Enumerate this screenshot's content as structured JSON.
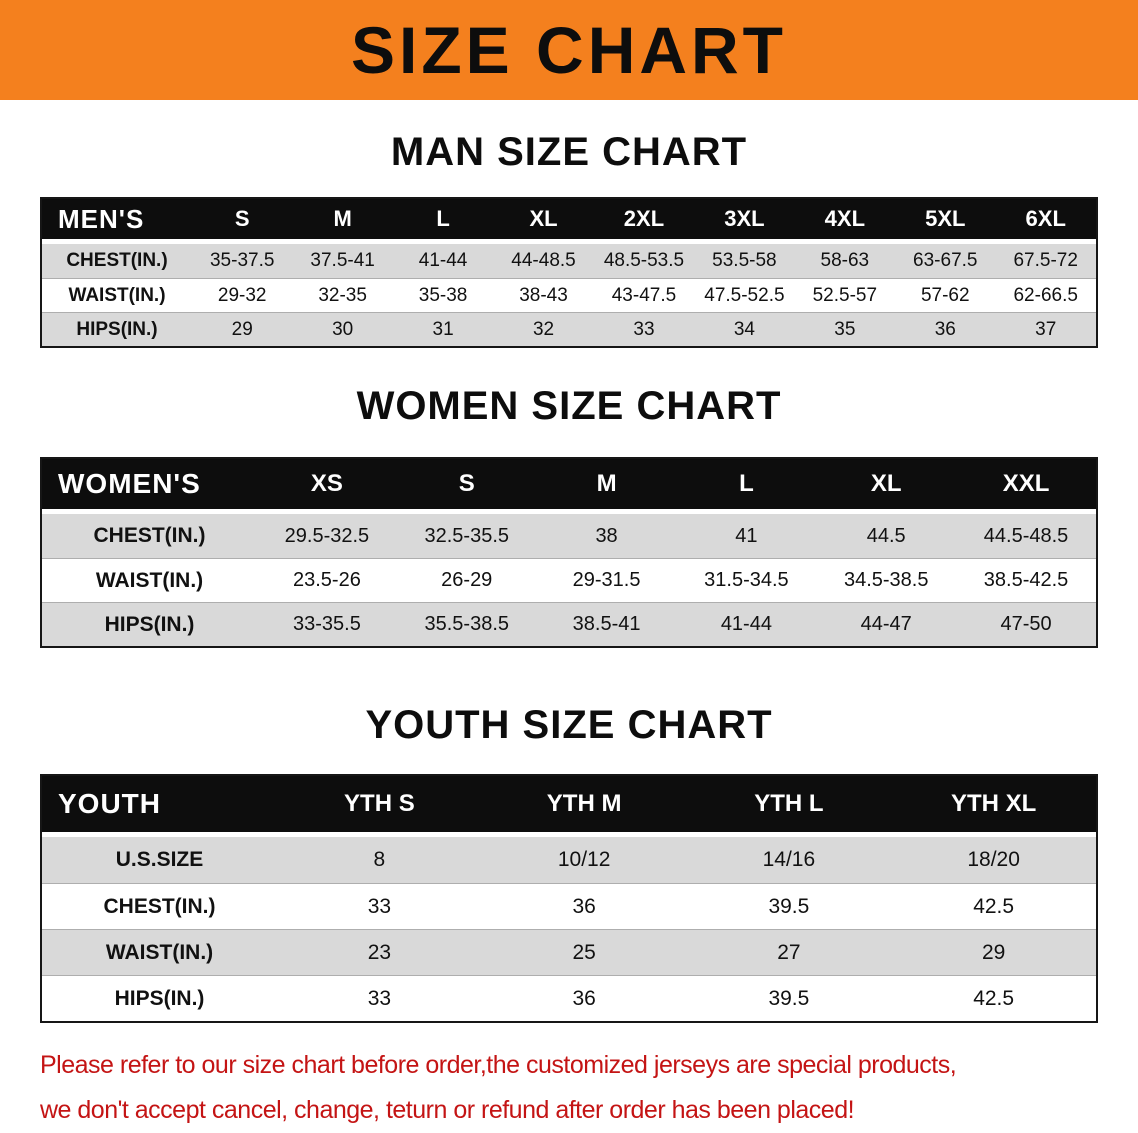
{
  "banner": {
    "title": "SIZE CHART",
    "bg_color": "#f4801e"
  },
  "sections": [
    {
      "heading": "MAN SIZE CHART",
      "table": {
        "corner_label": "MEN'S",
        "columns": [
          "S",
          "M",
          "L",
          "XL",
          "2XL",
          "3XL",
          "4XL",
          "5XL",
          "6XL"
        ],
        "rows": [
          {
            "label": "CHEST(IN.)",
            "values": [
              "35-37.5",
              "37.5-41",
              "41-44",
              "44-48.5",
              "48.5-53.5",
              "53.5-58",
              "58-63",
              "63-67.5",
              "67.5-72"
            ]
          },
          {
            "label": "WAIST(IN.)",
            "values": [
              "29-32",
              "32-35",
              "35-38",
              "38-43",
              "43-47.5",
              "47.5-52.5",
              "52.5-57",
              "57-62",
              "62-66.5"
            ]
          },
          {
            "label": "HIPS(IN.)",
            "values": [
              "29",
              "30",
              "31",
              "32",
              "33",
              "34",
              "35",
              "36",
              "37"
            ]
          }
        ]
      }
    },
    {
      "heading": "WOMEN SIZE CHART",
      "table": {
        "corner_label": "WOMEN'S",
        "columns": [
          "XS",
          "S",
          "M",
          "L",
          "XL",
          "XXL"
        ],
        "rows": [
          {
            "label": "CHEST(IN.)",
            "values": [
              "29.5-32.5",
              "32.5-35.5",
              "38",
              "41",
              "44.5",
              "44.5-48.5"
            ]
          },
          {
            "label": "WAIST(IN.)",
            "values": [
              "23.5-26",
              "26-29",
              "29-31.5",
              "31.5-34.5",
              "34.5-38.5",
              "38.5-42.5"
            ]
          },
          {
            "label": "HIPS(IN.)",
            "values": [
              "33-35.5",
              "35.5-38.5",
              "38.5-41",
              "41-44",
              "44-47",
              "47-50"
            ]
          }
        ]
      }
    },
    {
      "heading": "YOUTH SIZE CHART",
      "table": {
        "corner_label": "YOUTH",
        "columns": [
          "YTH S",
          "YTH M",
          "YTH L",
          "YTH XL"
        ],
        "rows": [
          {
            "label": "U.S.SIZE",
            "values": [
              "8",
              "10/12",
              "14/16",
              "18/20"
            ]
          },
          {
            "label": "CHEST(IN.)",
            "values": [
              "33",
              "36",
              "39.5",
              "42.5"
            ]
          },
          {
            "label": "WAIST(IN.)",
            "values": [
              "23",
              "25",
              "27",
              "29"
            ]
          },
          {
            "label": "HIPS(IN.)",
            "values": [
              "33",
              "36",
              "39.5",
              "42.5"
            ]
          }
        ]
      }
    }
  ],
  "footer_note": {
    "color": "#c41414",
    "lines": [
      "Please refer to our size chart before order,the customized jerseys are special products,",
      "we don't accept cancel, change, teturn or refund after order has been placed!"
    ]
  }
}
